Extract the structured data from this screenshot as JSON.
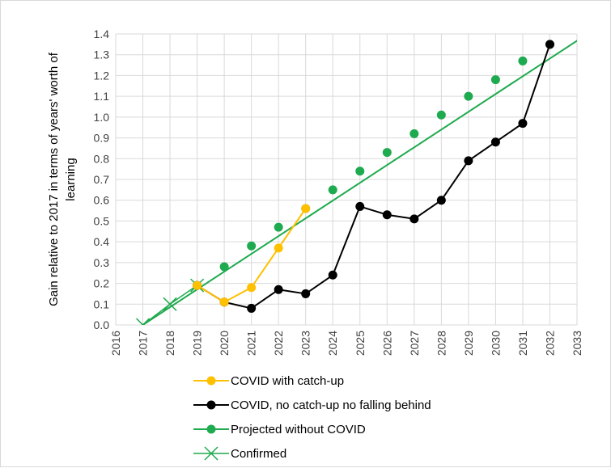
{
  "chart_data": {
    "type": "line",
    "title": "",
    "xlabel": "",
    "ylabel_lines": [
      "Gain relative to 2017 in terms of years' worth of",
      "learning"
    ],
    "x_categories": [
      "2016",
      "2017",
      "2018",
      "2019",
      "2020",
      "2021",
      "2022",
      "2023",
      "2024",
      "2025",
      "2026",
      "2027",
      "2028",
      "2029",
      "2030",
      "2031",
      "2032",
      "2033"
    ],
    "y_ticks": [
      "0.0",
      "0.1",
      "0.2",
      "0.3",
      "0.4",
      "0.5",
      "0.6",
      "0.7",
      "0.8",
      "0.9",
      "1.0",
      "1.1",
      "1.2",
      "1.3",
      "1.4"
    ],
    "ylim": [
      0,
      1.4
    ],
    "xlim": [
      2016,
      2033
    ],
    "grid": true,
    "legend_position": "bottom",
    "series": [
      {
        "name": "COVID with catch-up",
        "color": "#FFC000",
        "marker": "circle",
        "points": [
          [
            2019,
            0.19
          ],
          [
            2020,
            0.11
          ],
          [
            2021,
            0.18
          ],
          [
            2022,
            0.37
          ],
          [
            2023,
            0.56
          ]
        ]
      },
      {
        "name": "COVID, no catch-up no falling behind",
        "color": "#000000",
        "marker": "circle",
        "points": [
          [
            2019,
            0.19
          ],
          [
            2020,
            0.11
          ],
          [
            2021,
            0.08
          ],
          [
            2022,
            0.17
          ],
          [
            2023,
            0.15
          ],
          [
            2024,
            0.24
          ],
          [
            2025,
            0.57
          ],
          [
            2026,
            0.53
          ],
          [
            2027,
            0.51
          ],
          [
            2028,
            0.6
          ],
          [
            2029,
            0.79
          ],
          [
            2030,
            0.88
          ],
          [
            2031,
            0.97
          ],
          [
            2032,
            1.35
          ]
        ]
      },
      {
        "name": "Projected without COVID",
        "color": "#1EAA4E",
        "marker": "circle",
        "points": [
          [
            2019,
            0.19
          ],
          [
            2020,
            0.28
          ],
          [
            2021,
            0.38
          ],
          [
            2022,
            0.47
          ],
          [
            2023,
            0.56
          ],
          [
            2024,
            0.65
          ],
          [
            2025,
            0.74
          ],
          [
            2026,
            0.83
          ],
          [
            2027,
            0.92
          ],
          [
            2028,
            1.01
          ],
          [
            2029,
            1.1
          ],
          [
            2030,
            1.18
          ],
          [
            2031,
            1.27
          ],
          [
            2032,
            1.35
          ]
        ],
        "line_extends": [
          [
            2017,
            0.0
          ],
          [
            2033.5,
            1.41
          ]
        ]
      },
      {
        "name": "Confirmed",
        "color": "#1EAA4E",
        "marker": "x",
        "points": [
          [
            2017,
            0.0
          ],
          [
            2018,
            0.1
          ],
          [
            2019,
            0.19
          ]
        ]
      }
    ]
  }
}
